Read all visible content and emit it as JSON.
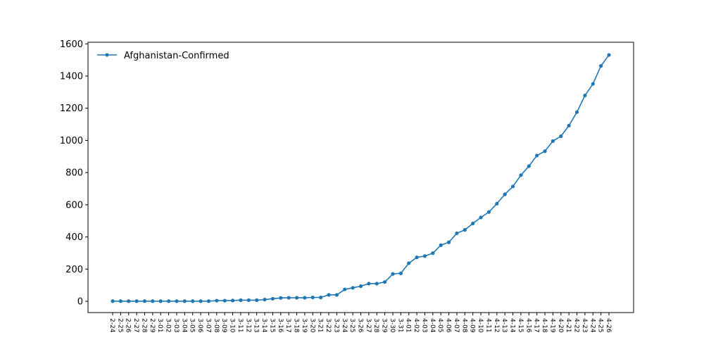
{
  "chart_data": {
    "type": "line",
    "title": "",
    "xlabel": "",
    "ylabel": "",
    "ylim": [
      -70,
      1610
    ],
    "yticks": [
      0,
      200,
      400,
      600,
      800,
      1000,
      1200,
      1400,
      1600
    ],
    "grid": false,
    "legend_position": "top-left",
    "categories": [
      "2-24",
      "2-25",
      "2-26",
      "2-27",
      "2-28",
      "2-29",
      "3-01",
      "3-02",
      "3-03",
      "3-04",
      "3-05",
      "3-06",
      "3-07",
      "3-08",
      "3-09",
      "3-10",
      "3-11",
      "3-12",
      "3-13",
      "3-14",
      "3-15",
      "3-16",
      "3-17",
      "3-18",
      "3-19",
      "3-20",
      "3-21",
      "3-22",
      "3-23",
      "3-24",
      "3-25",
      "3-26",
      "3-27",
      "3-28",
      "3-29",
      "3-30",
      "3-31",
      "4-01",
      "4-02",
      "4-03",
      "4-04",
      "4-05",
      "4-06",
      "4-07",
      "4-08",
      "4-09",
      "4-10",
      "4-11",
      "4-12",
      "4-13",
      "4-14",
      "4-15",
      "4-16",
      "4-17",
      "4-18",
      "4-19",
      "4-20",
      "4-21",
      "4-22",
      "4-23",
      "4-24",
      "4-25",
      "4-26"
    ],
    "series": [
      {
        "name": "Afghanistan-Confirmed",
        "color": "#1f77b4",
        "values": [
          1,
          1,
          1,
          1,
          1,
          1,
          1,
          1,
          1,
          1,
          1,
          1,
          1,
          4,
          4,
          5,
          7,
          7,
          7,
          11,
          16,
          21,
          22,
          22,
          22,
          24,
          24,
          40,
          40,
          74,
          84,
          94,
          110,
          110,
          120,
          170,
          174,
          237,
          273,
          281,
          299,
          349,
          367,
          423,
          444,
          484,
          521,
          555,
          607,
          665,
          714,
          784,
          840,
          906,
          933,
          996,
          1026,
          1092,
          1176,
          1279,
          1351,
          1463,
          1531
        ]
      }
    ]
  }
}
